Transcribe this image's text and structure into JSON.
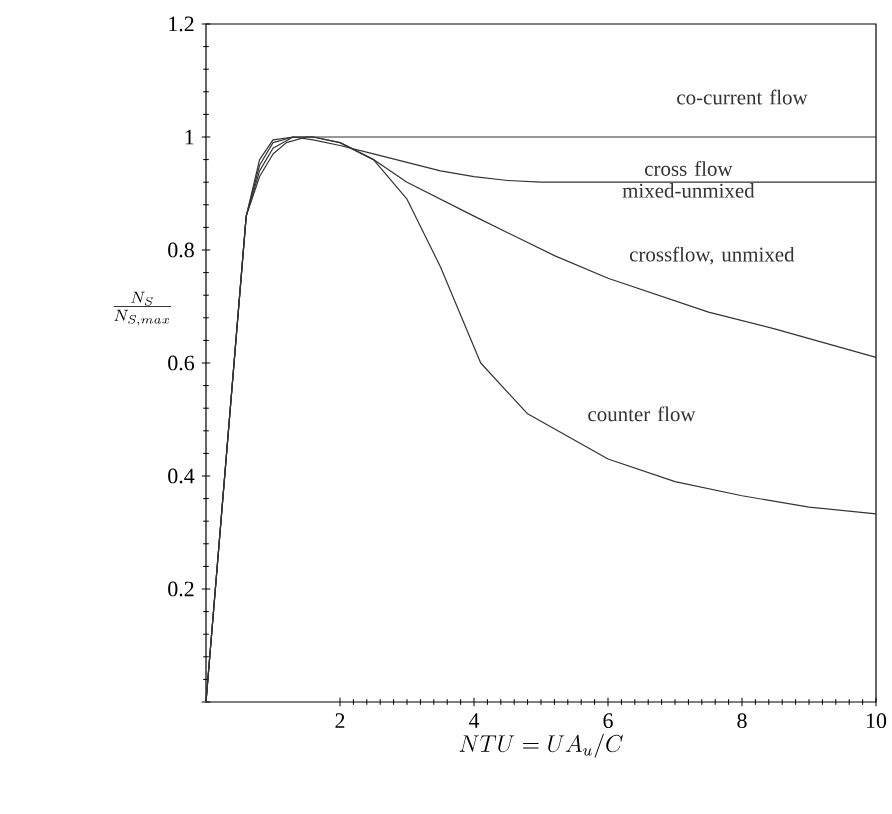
{
  "chart_data": {
    "type": "line",
    "xlabel": "NTU = UA_u/C",
    "ylabel": "\\frac{N_S}{N_{S,max}}",
    "xlim": [
      0,
      10
    ],
    "ylim": [
      0,
      1.2
    ],
    "xticks": [
      2,
      4,
      6,
      8,
      10
    ],
    "yticks": [
      {
        "value": 0,
        "label": null
      },
      0.2,
      0.4,
      0.6,
      0.8,
      1,
      1.2
    ],
    "line_style": "solid",
    "marker": "none",
    "series": [
      {
        "name": "co-current flow",
        "color": "#333333",
        "x": [
          0,
          0.6,
          0.8,
          1.0,
          1.2,
          1.5,
          2,
          4,
          6,
          8,
          10
        ],
        "values": [
          0,
          0.86,
          0.93,
          0.97,
          0.99,
          1.0,
          1.0,
          1.0,
          1.0,
          1.0,
          1.0
        ]
      },
      {
        "name": "cross flow mixed-unmixed",
        "color": "#333333",
        "x": [
          0,
          0.6,
          0.8,
          1.0,
          1.3,
          1.6,
          2,
          2.5,
          3,
          3.5,
          4,
          4.5,
          5,
          6,
          8,
          10
        ],
        "values": [
          0,
          0.86,
          0.95,
          0.99,
          1.0,
          0.995,
          0.985,
          0.97,
          0.955,
          0.94,
          0.93,
          0.923,
          0.92,
          0.92,
          0.92,
          0.92
        ]
      },
      {
        "name": "crossflow, unmixed",
        "color": "#333333",
        "x": [
          0,
          0.6,
          0.8,
          1.0,
          1.3,
          1.6,
          2,
          2.5,
          3,
          4,
          5.2,
          6,
          7.5,
          8.5,
          10
        ],
        "values": [
          0,
          0.86,
          0.94,
          0.98,
          1.0,
          1.0,
          0.99,
          0.96,
          0.92,
          0.86,
          0.79,
          0.75,
          0.69,
          0.66,
          0.61
        ]
      },
      {
        "name": "counter flow",
        "color": "#333333",
        "x": [
          0,
          0.6,
          0.8,
          1.0,
          1.3,
          1.6,
          2,
          2.5,
          3,
          3.5,
          4.1,
          4.8,
          6,
          7,
          8,
          9,
          10
        ],
        "values": [
          0,
          0.86,
          0.96,
          0.995,
          1.0,
          1.0,
          0.99,
          0.96,
          0.89,
          0.77,
          0.6,
          0.51,
          0.43,
          0.39,
          0.365,
          0.345,
          0.333
        ]
      }
    ]
  }
}
